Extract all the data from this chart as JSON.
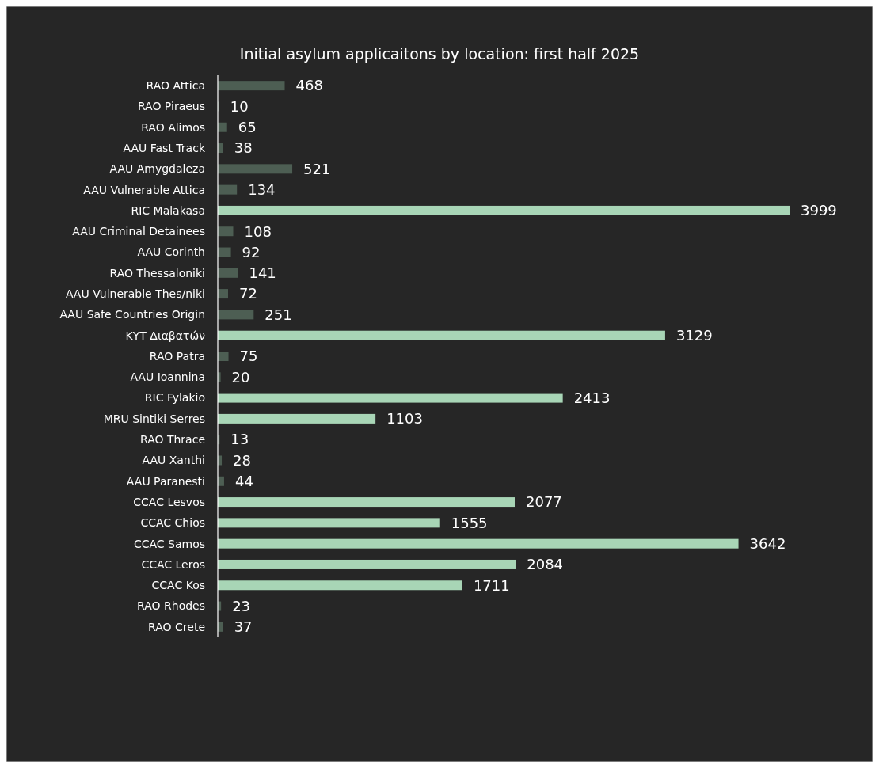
{
  "chart_data": {
    "type": "bar",
    "orientation": "horizontal",
    "title": "Initial asylum applicaitons by location: first half 2025",
    "data_labels": true,
    "categories": [
      "RAO Attica",
      "RAO Piraeus",
      "RAO Alimos",
      "AAU Fast Track",
      "AAU Amygdaleza",
      "AAU Vulnerable Attica",
      "RIC Malakasa",
      "AAU Criminal Detainees",
      "AAU Corinth",
      "RAO Thessaloniki",
      "AAU Vulnerable Thes/niki",
      "AAU Safe Countries Origin",
      "ΚΥΤ Διαβατών",
      "RAO Patra",
      "AAU Ioannina",
      "RIC Fylakio",
      "MRU Sintiki Serres",
      "RAO Thrace",
      "AAU Xanthi",
      "AAU Paranesti",
      "CCAC Lesvos",
      "CCAC Chios",
      "CCAC Samos",
      "CCAC Leros",
      "CCAC Kos",
      "RAO Rhodes",
      "RAO Crete"
    ],
    "values": [
      468,
      10,
      65,
      38,
      521,
      134,
      3999,
      108,
      92,
      141,
      72,
      251,
      3129,
      75,
      20,
      2413,
      1103,
      13,
      28,
      44,
      2077,
      1555,
      3642,
      2084,
      1711,
      23,
      37
    ],
    "colors": [
      "#4d5e53",
      "#4d5e53",
      "#4d5e53",
      "#4d5e53",
      "#4d5e53",
      "#4d5e53",
      "#a8d5b6",
      "#4d5e53",
      "#4d5e53",
      "#4d5e53",
      "#4d5e53",
      "#4d5e53",
      "#a8d5b6",
      "#4d5e53",
      "#4d5e53",
      "#a8d5b6",
      "#a8d5b6",
      "#4d5e53",
      "#4d5e53",
      "#4d5e53",
      "#a8d5b6",
      "#a8d5b6",
      "#a8d5b6",
      "#a8d5b6",
      "#a8d5b6",
      "#4d5e53",
      "#4d5e53"
    ]
  }
}
